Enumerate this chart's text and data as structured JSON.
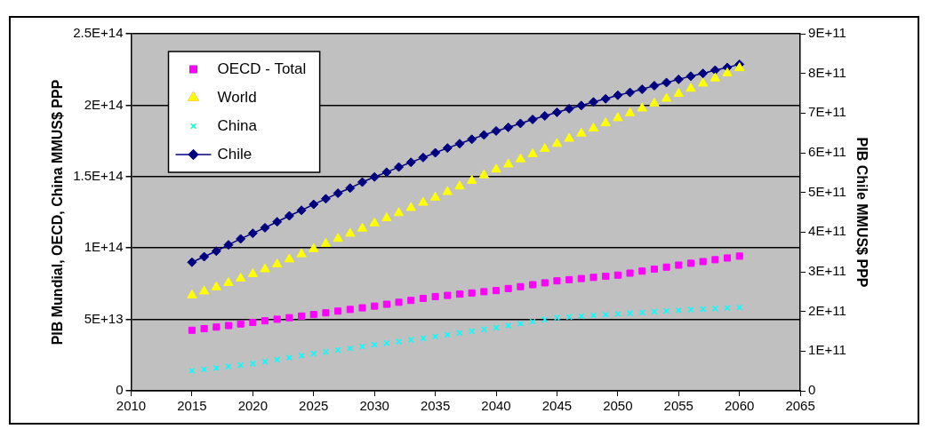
{
  "chart_data": {
    "type": "scatter",
    "ylabel": "PIB Mundial, OECD, China MMUS$ PPP",
    "y2label": "PIB Chile MMUS$ PPP",
    "x": [
      2015,
      2016,
      2017,
      2018,
      2019,
      2020,
      2021,
      2022,
      2023,
      2024,
      2025,
      2026,
      2027,
      2028,
      2029,
      2030,
      2031,
      2032,
      2033,
      2034,
      2035,
      2036,
      2037,
      2038,
      2039,
      2040,
      2041,
      2042,
      2043,
      2044,
      2045,
      2046,
      2047,
      2048,
      2049,
      2050,
      2051,
      2052,
      2053,
      2054,
      2055,
      2056,
      2057,
      2058,
      2059,
      2060
    ],
    "series": [
      {
        "name": "OECD - Total",
        "type": "scatter",
        "marker": "square",
        "color": "#ff00ff",
        "values": [
          42400000000000.0,
          43500000000000.0,
          44600000000000.0,
          45700000000000.0,
          46800000000000.0,
          47900000000000.0,
          49000000000000.0,
          50100000000000.0,
          51200000000000.0,
          52300000000000.0,
          53400000000000.0,
          54600000000000.0,
          55800000000000.0,
          57000000000000.0,
          58100000000000.0,
          59300000000000.0,
          60600000000000.0,
          62000000000000.0,
          63300000000000.0,
          64700000000000.0,
          66000000000000.0,
          66800000000000.0,
          67700000000000.0,
          68500000000000.0,
          69400000000000.0,
          70200000000000.0,
          71600000000000.0,
          72900000000000.0,
          74300000000000.0,
          75600000000000.0,
          77000000000000.0,
          77800000000000.0,
          78600000000000.0,
          79400000000000.0,
          80200000000000.0,
          81000000000000.0,
          82400000000000.0,
          83800000000000.0,
          85200000000000.0,
          86600000000000.0,
          88000000000000.0,
          89300000000000.0,
          90500000000000.0,
          91800000000000.0,
          93000000000000.0,
          94300000000000.0
        ]
      },
      {
        "name": "World",
        "type": "scatter",
        "marker": "triangle",
        "color": "#ffff00",
        "values": [
          66900000000000.0,
          69700000000000.0,
          72600000000000.0,
          75600000000000.0,
          78700000000000.0,
          81800000000000.0,
          85200000000000.0,
          88600000000000.0,
          92100000000000.0,
          95700000000000.0,
          99300000000000.0,
          102900000000000.0,
          106500000000000.0,
          110100000000000.0,
          113700000000000.0,
          117300000000000.0,
          120900000000000.0,
          124500000000000.0,
          128100000000000.0,
          131800000000000.0,
          135400000000000.0,
          139300000000000.0,
          143200000000000.0,
          147100000000000.0,
          151000000000000.0,
          155000000000000.0,
          158600000000000.0,
          162200000000000.0,
          165800000000000.0,
          169400000000000.0,
          173000000000000.0,
          176600000000000.0,
          180200000000000.0,
          183800000000000.0,
          187400000000000.0,
          191000000000000.0,
          194400000000000.0,
          197800000000000.0,
          201200000000000.0,
          204600000000000.0,
          208000000000000.0,
          211600000000000.0,
          215200000000000.0,
          218800000000000.0,
          222400000000000.0,
          226000000000000.0
        ]
      },
      {
        "name": "China",
        "type": "scatter",
        "marker": "cross",
        "color": "#00ffff",
        "values": [
          14000000000000.0,
          15000000000000.0,
          16000000000000.0,
          17000000000000.0,
          18000000000000.0,
          19000000000000.0,
          20400000000000.0,
          21800000000000.0,
          23200000000000.0,
          24600000000000.0,
          26000000000000.0,
          27200000000000.0,
          28500000000000.0,
          29700000000000.0,
          31000000000000.0,
          32200000000000.0,
          33400000000000.0,
          34500000000000.0,
          35700000000000.0,
          36800000000000.0,
          38000000000000.0,
          39200000000000.0,
          40500000000000.0,
          41700000000000.0,
          43000000000000.0,
          44200000000000.0,
          45600000000000.0,
          47000000000000.0,
          48400000000000.0,
          49800000000000.0,
          51200000000000.0,
          51700000000000.0,
          52200000000000.0,
          52800000000000.0,
          53300000000000.0,
          53800000000000.0,
          54300000000000.0,
          54800000000000.0,
          55400000000000.0,
          55900000000000.0,
          56400000000000.0,
          56800000000000.0,
          57200000000000.0,
          57600000000000.0,
          58000000000000.0,
          58400000000000.0
        ]
      },
      {
        "name": "Chile",
        "type": "line",
        "marker": "diamond",
        "line_style": "solid",
        "axis": "y2",
        "color": "#000080",
        "values": [
          324000000000.0,
          338000000000.0,
          352000000000.0,
          368000000000.0,
          383000000000.0,
          397000000000.0,
          411000000000.0,
          426000000000.0,
          441000000000.0,
          455000000000.0,
          470000000000.0,
          484000000000.0,
          498000000000.0,
          511000000000.0,
          526000000000.0,
          539000000000.0,
          551000000000.0,
          564000000000.0,
          576000000000.0,
          588000000000.0,
          600000000000.0,
          612000000000.0,
          623000000000.0,
          634000000000.0,
          645000000000.0,
          655000000000.0,
          664000000000.0,
          674000000000.0,
          684000000000.0,
          693000000000.0,
          702000000000.0,
          711000000000.0,
          719000000000.0,
          728000000000.0,
          736000000000.0,
          745000000000.0,
          752000000000.0,
          760000000000.0,
          769000000000.0,
          777000000000.0,
          785000000000.0,
          793000000000.0,
          800000000000.0,
          808000000000.0,
          815000000000.0,
          823000000000.0
        ]
      }
    ],
    "xlim": [
      2010,
      2065
    ],
    "xticks": [
      2010,
      2015,
      2020,
      2025,
      2030,
      2035,
      2040,
      2045,
      2050,
      2055,
      2060,
      2065
    ],
    "ylim": [
      0,
      250000000000000.0
    ],
    "yticks": [
      0,
      {
        "value": 50000000000000.0,
        "label": "5E+13"
      },
      {
        "value": 100000000000000.0,
        "label": "1E+14"
      },
      {
        "value": 150000000000000.0,
        "label": "1.5E+14"
      },
      {
        "value": 200000000000000.0,
        "label": "2E+14"
      },
      {
        "value": 250000000000000.0,
        "label": "2.5E+14"
      }
    ],
    "y2lim": [
      0,
      900000000000.0
    ],
    "y2ticks": [
      0,
      {
        "value": 100000000000.0,
        "label": "1E+11"
      },
      {
        "value": 200000000000.0,
        "label": "2E+11"
      },
      {
        "value": 300000000000.0,
        "label": "3E+11"
      },
      {
        "value": 400000000000.0,
        "label": "4E+11"
      },
      {
        "value": 500000000000.0,
        "label": "5E+11"
      },
      {
        "value": 600000000000.0,
        "label": "6E+11"
      },
      {
        "value": 700000000000.0,
        "label": "7E+11"
      },
      {
        "value": 800000000000.0,
        "label": "8E+11"
      },
      {
        "value": 900000000000.0,
        "label": "9E+11"
      }
    ],
    "grid": "y",
    "legend": "top left"
  }
}
